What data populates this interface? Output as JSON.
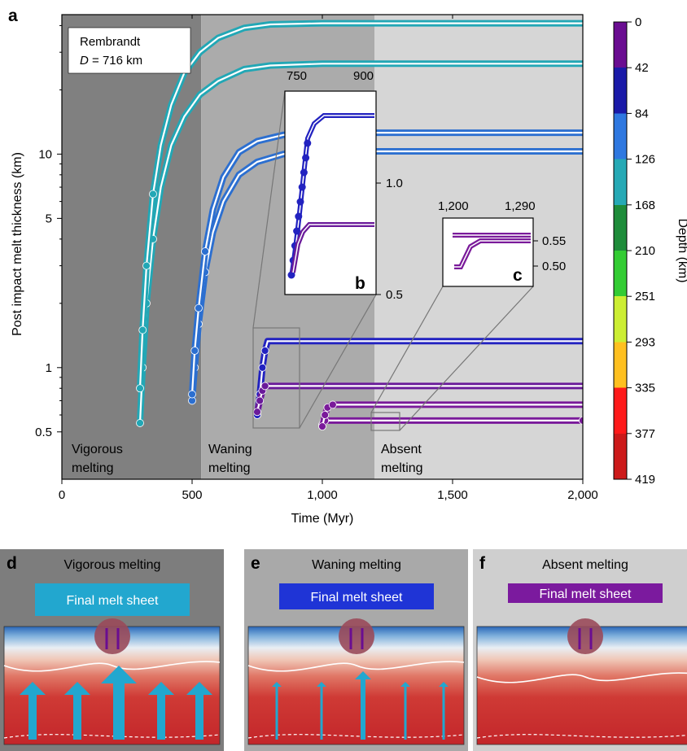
{
  "chart_data": [
    {
      "panel": "a",
      "type": "line",
      "xlabel": "Time (Myr)",
      "ylabel": "Post impact melt thickness (km)",
      "xlim": [
        0,
        2000
      ],
      "ylim": [
        0.3,
        45
      ],
      "yscale": "log",
      "grid": false,
      "xticks": [
        "0",
        "500",
        "1,000",
        "1,500",
        "2,000"
      ],
      "yticks": [
        "0.5",
        "1",
        "5",
        "10"
      ],
      "annotation": {
        "line1": "Rembrandt",
        "line2_prefix": "D",
        "line2_suffix": " = 716 km"
      },
      "regions": [
        {
          "label1": "Vigorous",
          "label2": "melting",
          "x_start": 0,
          "x_end": 535,
          "color": "#808080"
        },
        {
          "label1": "Waning",
          "label2": "melting",
          "x_start": 535,
          "x_end": 1200,
          "color": "#ababab"
        },
        {
          "label1": "Absent",
          "label2": "melting",
          "x_start": 1200,
          "x_end": 2000,
          "color": "#d6d6d6"
        }
      ],
      "series": [
        {
          "group": "vigorous",
          "color": "#22a7b5",
          "x": [
            300,
            310,
            325,
            350,
            380,
            420,
            470,
            530,
            600,
            700,
            800,
            1000,
            2000
          ],
          "y": [
            0.55,
            1.0,
            2.0,
            4.0,
            7.0,
            11.0,
            15.0,
            19.0,
            22.0,
            25.0,
            26.0,
            26.5,
            26.5
          ]
        },
        {
          "group": "vigorous",
          "color": "#22a7b5",
          "x": [
            300,
            310,
            325,
            350,
            380,
            420,
            470,
            530,
            600,
            700,
            800,
            1000,
            2000
          ],
          "y": [
            0.8,
            1.5,
            3.0,
            6.5,
            11.0,
            17.0,
            24.0,
            30.0,
            35.0,
            39.0,
            40.5,
            41.0,
            41.0
          ]
        },
        {
          "group": "waning",
          "color": "#2c6fd0",
          "x": [
            500,
            510,
            525,
            550,
            580,
            620,
            680,
            750,
            850,
            1000,
            2000
          ],
          "y": [
            0.7,
            1.0,
            1.6,
            2.8,
            4.3,
            6.0,
            8.0,
            9.2,
            10.0,
            10.3,
            10.3
          ]
        },
        {
          "group": "waning",
          "color": "#2c6fd0",
          "x": [
            500,
            510,
            525,
            550,
            580,
            620,
            680,
            750,
            850,
            1000,
            2000
          ],
          "y": [
            0.75,
            1.2,
            1.9,
            3.5,
            5.5,
            7.8,
            10.2,
            11.5,
            12.3,
            12.6,
            12.6
          ]
        },
        {
          "group": "inset-b",
          "color": "#2222c0",
          "x": [
            750,
            760,
            770,
            780,
            790,
            1000,
            2000
          ],
          "y": [
            0.6,
            0.75,
            1.0,
            1.2,
            1.33,
            1.33,
            1.33
          ]
        },
        {
          "group": "inset-b",
          "color": "#6a1a9a",
          "x": [
            750,
            760,
            770,
            780,
            1000,
            2000
          ],
          "y": [
            0.62,
            0.7,
            0.78,
            0.82,
            0.82,
            0.82
          ]
        },
        {
          "group": "inset-c",
          "color": "#7a1a9a",
          "x": [
            1000,
            1005,
            1010,
            2000
          ],
          "y": [
            0.54,
            0.56,
            0.565,
            0.565
          ]
        },
        {
          "group": "inset-c",
          "color": "#7a1a9a",
          "x": [
            1000,
            1010,
            1020,
            1040,
            2000
          ],
          "y": [
            0.53,
            0.6,
            0.65,
            0.67,
            0.67
          ]
        }
      ],
      "colorbar": {
        "label": "Depth (km)",
        "ticks": [
          "0",
          "42",
          "84",
          "126",
          "168",
          "210",
          "251",
          "293",
          "335",
          "377",
          "419"
        ],
        "colors": [
          "#6a0d91",
          "#1a1aa8",
          "#2f78e0",
          "#26a9b5",
          "#1e8c3a",
          "#33cc33",
          "#ccee33",
          "#ffc020",
          "#ff1a1a",
          "#cc1a1a"
        ]
      }
    },
    {
      "panel": "b",
      "type": "line",
      "xticks": [
        "750",
        "900"
      ],
      "yticks": [
        "1.0",
        "0.5"
      ]
    },
    {
      "panel": "c",
      "type": "line",
      "xticks": [
        "1,200",
        "1,290"
      ],
      "yticks": [
        "0.55",
        "0.50"
      ]
    }
  ],
  "panels_bottom": [
    {
      "letter": "d",
      "title": "Vigorous melting",
      "sheet_label": "Final melt sheet",
      "sheet_color": "#22a7cf",
      "bg": "#7d7d7d"
    },
    {
      "letter": "e",
      "title": "Waning melting",
      "sheet_label": "Final melt sheet",
      "sheet_color": "#1f34d6",
      "bg": "#a9a9a9"
    },
    {
      "letter": "f",
      "title": "Absent melting",
      "sheet_label": "Final melt sheet",
      "sheet_color": "#7b1a9e",
      "bg": "#cfcfcf"
    }
  ]
}
